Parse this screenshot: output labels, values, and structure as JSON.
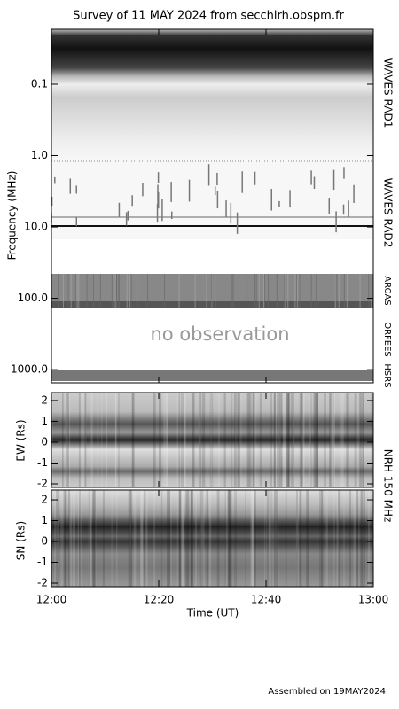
{
  "chart_data": [
    {
      "type": "spectrogram",
      "title": "Survey of 11 MAY 2024 from secchirh.obspm.fr",
      "ylabel": "Frequency (MHz)",
      "log_y": true,
      "ylim": [
        0.017,
        1530
      ],
      "yticks": [
        0.1,
        {
          "value": 1,
          "label": "1.0"
        },
        {
          "value": 10,
          "label": "10.0"
        },
        {
          "value": 100,
          "label": "100.0"
        },
        {
          "value": 1000,
          "label": "1000.0"
        }
      ],
      "instruments": [
        "WAVES RAD1",
        "WAVES RAD2",
        "ARCAS",
        "ORFEES",
        "HSRS"
      ],
      "annotation": "no observation"
    },
    {
      "type": "spectrogram",
      "ylabel": "EW (Rs)",
      "ylim": [
        -2.17,
        2.38
      ],
      "yticks": [
        2,
        1,
        0,
        -1,
        -2
      ],
      "instrument": "NRH 150 MHz"
    },
    {
      "type": "spectrogram",
      "ylabel": "SN (Rs)",
      "ylim": [
        -2.17,
        2.47
      ],
      "yticks": [
        2,
        1,
        0,
        -1,
        -2
      ],
      "xticks": [
        "12:00",
        "12:20",
        "12:40",
        "13:00"
      ],
      "xlabel": "Time (UT)",
      "note": "Assembled on 19MAY2024"
    }
  ]
}
